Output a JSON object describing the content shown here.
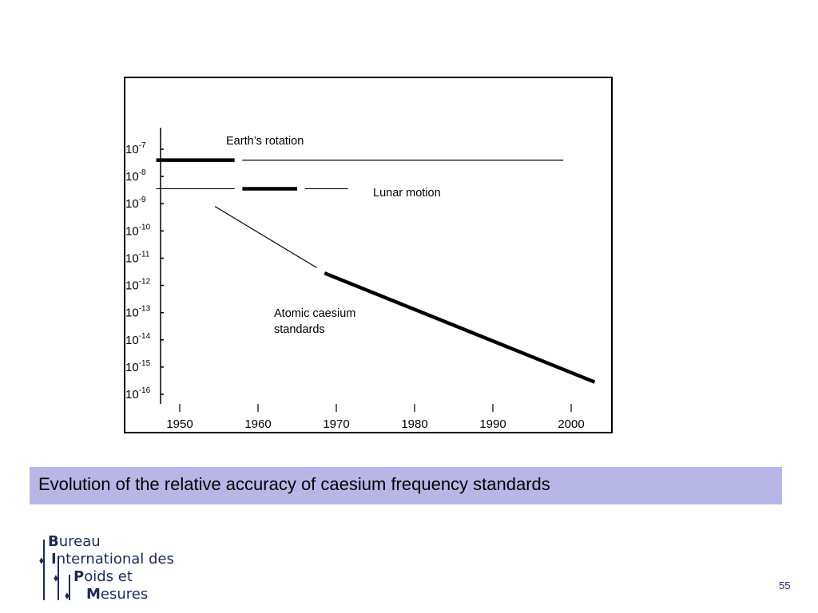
{
  "chart_data": {
    "type": "line",
    "title": "",
    "xlabel": "",
    "ylabel": "",
    "x_ticks": [
      "1950",
      "1960",
      "1970",
      "1980",
      "1990",
      "2000"
    ],
    "xlim": [
      1947,
      2004
    ],
    "y_ticks": [
      {
        "base": "10",
        "exp": "-7"
      },
      {
        "base": "10",
        "exp": "-8"
      },
      {
        "base": "10",
        "exp": "-9"
      },
      {
        "base": "10",
        "exp": "-10"
      },
      {
        "base": "10",
        "exp": "-11"
      },
      {
        "base": "10",
        "exp": "-12"
      },
      {
        "base": "10",
        "exp": "-13"
      },
      {
        "base": "10",
        "exp": "-14"
      },
      {
        "base": "10",
        "exp": "-15"
      },
      {
        "base": "10",
        "exp": "-16"
      }
    ],
    "y_scale": "log",
    "ylim_exponent": [
      -16.3,
      -6.3
    ],
    "grid": false,
    "annotations": {
      "earth": "Earth’s rotation",
      "lunar": "Lunar motion",
      "caesium_line1": "Atomic caesium",
      "caesium_line2": "standards"
    },
    "series": [
      {
        "segments": [
          {
            "x": [
              1947,
              1957
            ],
            "log10_y": [
              -7.4,
              -7.4
            ],
            "weight": "thick"
          },
          {
            "x": [
              1958,
              1999
            ],
            "log10_y": [
              -7.4,
              -7.4
            ],
            "weight": "thin"
          }
        ]
      },
      {
        "segments": [
          {
            "x": [
              1947,
              1957
            ],
            "log10_y": [
              -8.45,
              -8.45
            ],
            "weight": "thin"
          },
          {
            "x": [
              1958,
              1965
            ],
            "log10_y": [
              -8.45,
              -8.45
            ],
            "weight": "thick"
          },
          {
            "x": [
              1966,
              1971.5
            ],
            "log10_y": [
              -8.45,
              -8.45
            ],
            "weight": "thin"
          }
        ]
      },
      {
        "segments": [
          {
            "x": [
              1954.5,
              1967.5
            ],
            "log10_y": [
              -9.1,
              -11.35
            ],
            "weight": "thin"
          },
          {
            "x": [
              1968.5,
              2003
            ],
            "log10_y": [
              -11.55,
              -15.55
            ],
            "weight": "thick"
          }
        ]
      }
    ]
  },
  "caption": "Evolution  of the relative accuracy of caesium frequency standards",
  "logo": {
    "line1_initial": "B",
    "line1_rest": "ureau",
    "line2_initial": "I",
    "line2_rest": "nternational des",
    "line3_initial": "P",
    "line3_rest": "oids et",
    "line4_initial": "M",
    "line4_rest": "esures",
    "arrow_glyph": "⬧"
  },
  "page_number": "55",
  "colors": {
    "caption_bg": "#b7b6e6",
    "logo": "#1d2a57",
    "ink": "#000000"
  }
}
